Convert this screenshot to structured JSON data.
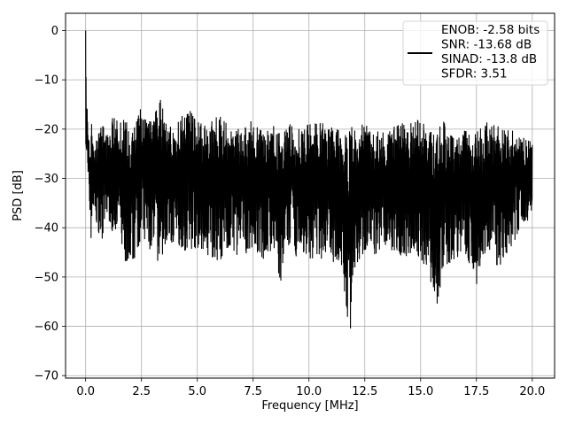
{
  "chart_data": {
    "type": "line",
    "xlabel": "Frequency [MHz]",
    "ylabel": "PSD [dB]",
    "xlim": [
      -0.9,
      21.0
    ],
    "ylim": [
      -70.5,
      3.5
    ],
    "xticks": [
      0.0,
      2.5,
      5.0,
      7.5,
      10.0,
      12.5,
      15.0,
      17.5,
      20.0
    ],
    "xtick_labels": [
      "0.0",
      "2.5",
      "5.0",
      "7.5",
      "10.0",
      "12.5",
      "15.0",
      "17.5",
      "20.0"
    ],
    "yticks": [
      0,
      -10,
      -20,
      -30,
      -40,
      -50,
      -60,
      -70
    ],
    "ytick_labels": [
      "0",
      "−10",
      "−20",
      "−30",
      "−40",
      "−50",
      "−60",
      "−70"
    ],
    "grid": true,
    "legend_position": "top-right",
    "series": [
      {
        "name": "ENOB: -2.58 bits\nSNR: -13.68 dB\nSINAD: -13.8 dB\nSFDR: 3.51",
        "legend_lines": [
          "ENOB: -2.58 bits",
          "SNR: -13.68 dB",
          "SINAD: -13.8 dB",
          "SFDR: 3.51"
        ],
        "color": "#000000",
        "x": [
          0.0,
          0.03,
          0.06,
          0.1,
          0.15,
          0.2,
          0.25,
          0.3,
          0.4,
          0.5,
          0.75,
          1.0,
          1.25,
          1.5,
          1.7,
          2.0,
          2.5,
          3.0,
          3.4,
          3.5,
          4.0,
          4.5,
          5.0,
          5.5,
          6.0,
          6.5,
          7.0,
          7.5,
          8.0,
          8.5,
          8.75,
          9.0,
          9.5,
          10.0,
          10.5,
          11.0,
          11.5,
          11.8,
          12.0,
          12.5,
          13.0,
          13.5,
          14.0,
          14.5,
          15.0,
          15.5,
          15.75,
          16.0,
          16.5,
          17.0,
          17.5,
          18.0,
          18.5,
          19.0,
          19.5,
          20.0
        ],
        "y": [
          0.0,
          -14.0,
          -10.5,
          -21.0,
          -18.5,
          -24.0,
          -16.0,
          -20.0,
          -23.0,
          -21.0,
          -19.0,
          -20.5,
          -17.0,
          -19.0,
          -16.0,
          -21.5,
          -15.0,
          -18.0,
          -12.5,
          -18.5,
          -20.0,
          -15.0,
          -18.5,
          -19.0,
          -17.0,
          -19.5,
          -20.0,
          -18.0,
          -20.5,
          -19.0,
          -21.0,
          -17.5,
          -20.0,
          -19.0,
          -18.5,
          -19.5,
          -20.0,
          -19.0,
          -19.5,
          -18.0,
          -20.0,
          -21.0,
          -18.5,
          -19.0,
          -17.5,
          -20.0,
          -19.5,
          -18.0,
          -21.0,
          -20.0,
          -20.5,
          -18.5,
          -19.5,
          -20.0,
          -21.0,
          -22.5
        ],
        "y_floor": [
          -22.0,
          -26.0,
          -28.0,
          -33.0,
          -36.0,
          -40.0,
          -43.5,
          -38.0,
          -37.0,
          -40.0,
          -43.0,
          -38.0,
          -42.0,
          -39.0,
          -48.5,
          -49.0,
          -42.0,
          -46.0,
          -48.0,
          -44.0,
          -43.0,
          -45.0,
          -44.0,
          -46.0,
          -47.0,
          -45.5,
          -46.0,
          -44.0,
          -47.0,
          -45.0,
          -52.5,
          -45.0,
          -46.0,
          -47.0,
          -46.5,
          -47.5,
          -48.0,
          -67.0,
          -48.5,
          -45.0,
          -46.0,
          -44.5,
          -46.0,
          -47.0,
          -46.0,
          -52.5,
          -57.5,
          -48.0,
          -47.0,
          -45.0,
          -52.0,
          -44.0,
          -49.0,
          -45.0,
          -40.0,
          -38.0
        ]
      }
    ]
  }
}
